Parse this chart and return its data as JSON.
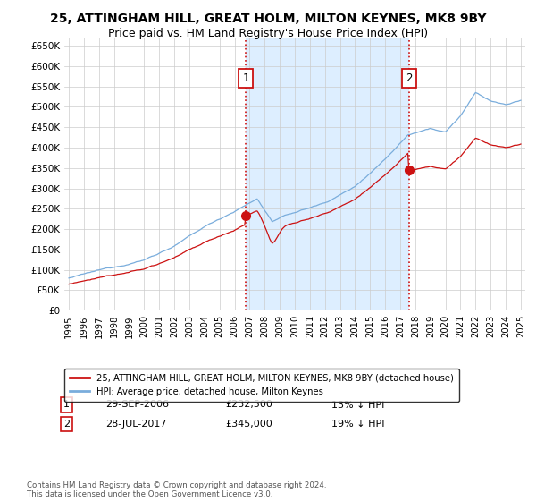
{
  "title": "25, ATTINGHAM HILL, GREAT HOLM, MILTON KEYNES, MK8 9BY",
  "subtitle": "Price paid vs. HM Land Registry's House Price Index (HPI)",
  "ylim": [
    0,
    670000
  ],
  "yticks": [
    0,
    50000,
    100000,
    150000,
    200000,
    250000,
    300000,
    350000,
    400000,
    450000,
    500000,
    550000,
    600000,
    650000
  ],
  "ytick_labels": [
    "£0",
    "£50K",
    "£100K",
    "£150K",
    "£200K",
    "£250K",
    "£300K",
    "£350K",
    "£400K",
    "£450K",
    "£500K",
    "£550K",
    "£600K",
    "£650K"
  ],
  "sale1_date": 2006.75,
  "sale1_price": 232500,
  "sale1_label": "1",
  "sale1_date_str": "29-SEP-2006",
  "sale1_price_str": "£232,500",
  "sale1_hpi": "13% ↓ HPI",
  "sale2_date": 2017.58,
  "sale2_price": 345000,
  "sale2_label": "2",
  "sale2_date_str": "28-JUL-2017",
  "sale2_price_str": "£345,000",
  "sale2_hpi": "19% ↓ HPI",
  "hpi_color": "#7aaddc",
  "sale_color": "#cc1111",
  "vline_color": "#cc1111",
  "shade_color": "#ddeeff",
  "background_color": "#ffffff",
  "grid_color": "#cccccc",
  "legend_label_sale": "25, ATTINGHAM HILL, GREAT HOLM, MILTON KEYNES, MK8 9BY (detached house)",
  "legend_label_hpi": "HPI: Average price, detached house, Milton Keynes",
  "footnote": "Contains HM Land Registry data © Crown copyright and database right 2024.\nThis data is licensed under the Open Government Licence v3.0.",
  "title_fontsize": 10,
  "subtitle_fontsize": 9
}
